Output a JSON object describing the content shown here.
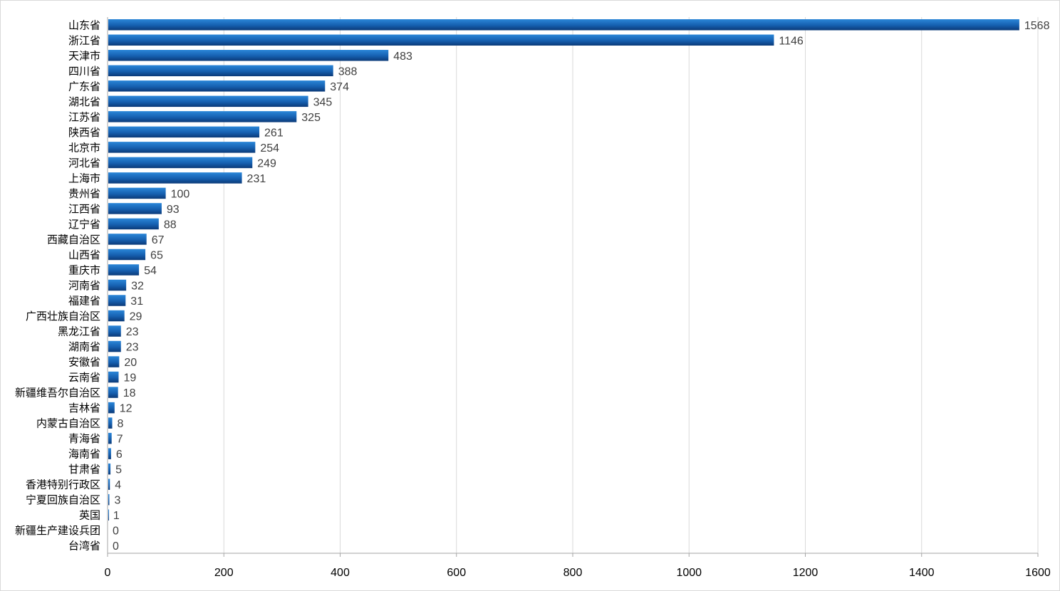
{
  "chart_data": {
    "type": "bar",
    "orientation": "horizontal",
    "title": "",
    "xlabel": "",
    "ylabel": "",
    "xlim": [
      0,
      1600
    ],
    "xticks": [
      0,
      200,
      400,
      600,
      800,
      1000,
      1200,
      1400,
      1600
    ],
    "grid": "vertical",
    "legend": "none",
    "bar_color": "#1f6fc0",
    "bar_color_dark": "#0b3a78",
    "categories": [
      "山东省",
      "浙江省",
      "天津市",
      "四川省",
      "广东省",
      "湖北省",
      "江苏省",
      "陕西省",
      "北京市",
      "河北省",
      "上海市",
      "贵州省",
      "江西省",
      "辽宁省",
      "西藏自治区",
      "山西省",
      "重庆市",
      "河南省",
      "福建省",
      "广西壮族自治区",
      "黑龙江省",
      "湖南省",
      "安徽省",
      "云南省",
      "新疆维吾尔自治区",
      "吉林省",
      "内蒙古自治区",
      "青海省",
      "海南省",
      "甘肃省",
      "香港特别行政区",
      "宁夏回族自治区",
      "英国",
      "新疆生产建设兵团",
      "台湾省"
    ],
    "values": [
      1568,
      1146,
      483,
      388,
      374,
      345,
      325,
      261,
      254,
      249,
      231,
      100,
      93,
      88,
      67,
      65,
      54,
      32,
      31,
      29,
      23,
      23,
      20,
      19,
      18,
      12,
      8,
      7,
      6,
      5,
      4,
      3,
      1,
      0,
      0
    ]
  }
}
